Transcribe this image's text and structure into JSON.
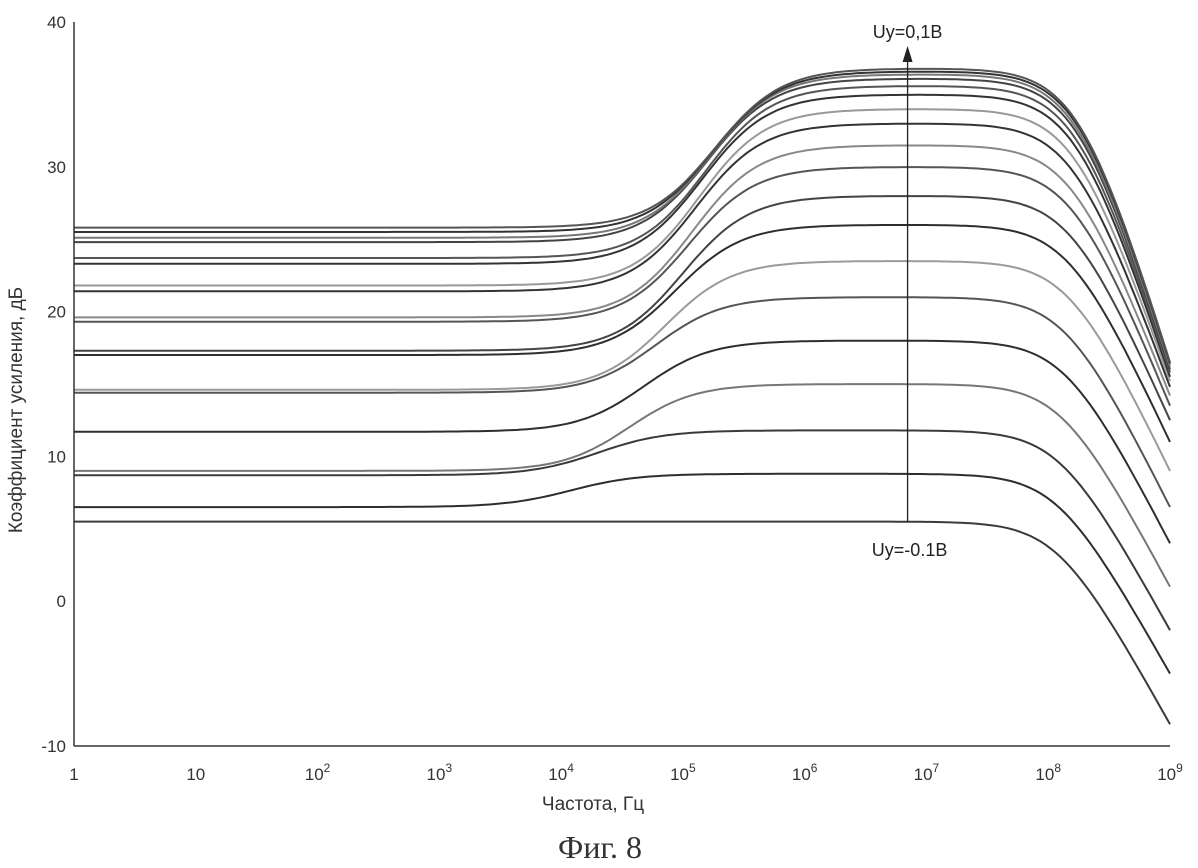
{
  "chart_data": {
    "type": "line",
    "xlabel": "Частота, Гц",
    "ylabel": "Коэффициент усиления, дБ",
    "caption": "Фиг. 8",
    "x_scale": "log",
    "xlim": [
      1,
      1000000000
    ],
    "ylim": [
      -10,
      40
    ],
    "grid": false,
    "x_ticks": [
      {
        "base": "1",
        "exp": ""
      },
      {
        "base": "10",
        "exp": ""
      },
      {
        "base": "10",
        "exp": "2"
      },
      {
        "base": "10",
        "exp": "3"
      },
      {
        "base": "10",
        "exp": "4"
      },
      {
        "base": "10",
        "exp": "5"
      },
      {
        "base": "10",
        "exp": "6"
      },
      {
        "base": "10",
        "exp": "7"
      },
      {
        "base": "10",
        "exp": "8"
      },
      {
        "base": "10",
        "exp": "9"
      }
    ],
    "y_ticks": [
      "40",
      "30",
      "20",
      "10",
      "0",
      "-10"
    ],
    "annotations": {
      "top": "Uy=0,1B",
      "bottom": "Uy=-0.1B",
      "arrow_x": 7000000
    },
    "series_model": "gain(f) = low + (mid - low) * T(f/fc) - rolloff above f_hi",
    "series": [
      {
        "low": 5.5,
        "mid": 5.5,
        "fc": 1000,
        "f_hi": 120000000,
        "end": -8.5,
        "tone": "#3a3a3a"
      },
      {
        "low": 6.5,
        "mid": 8.8,
        "fc": 3000,
        "f_hi": 120000000,
        "end": -5.0,
        "tone": "#2e2e2e"
      },
      {
        "low": 8.7,
        "mid": 11.8,
        "fc": 5000,
        "f_hi": 125000000,
        "end": -2.0,
        "tone": "#3a3a3a"
      },
      {
        "low": 9.0,
        "mid": 15.0,
        "fc": 9000,
        "f_hi": 130000000,
        "end": 1.0,
        "tone": "#777777"
      },
      {
        "low": 11.7,
        "mid": 18.0,
        "fc": 12000,
        "f_hi": 140000000,
        "end": 4.0,
        "tone": "#2e2e2e"
      },
      {
        "low": 14.4,
        "mid": 21.0,
        "fc": 15000,
        "f_hi": 140000000,
        "end": 6.5,
        "tone": "#555555"
      },
      {
        "low": 14.6,
        "mid": 23.5,
        "fc": 18000,
        "f_hi": 150000000,
        "end": 9.0,
        "tone": "#9a9a9a"
      },
      {
        "low": 17.0,
        "mid": 26.0,
        "fc": 22000,
        "f_hi": 150000000,
        "end": 11.0,
        "tone": "#2e2e2e"
      },
      {
        "low": 17.3,
        "mid": 28.0,
        "fc": 25000,
        "f_hi": 155000000,
        "end": 12.5,
        "tone": "#444444"
      },
      {
        "low": 19.3,
        "mid": 30.0,
        "fc": 28000,
        "f_hi": 160000000,
        "end": 13.5,
        "tone": "#555555"
      },
      {
        "low": 19.6,
        "mid": 31.5,
        "fc": 30000,
        "f_hi": 160000000,
        "end": 14.2,
        "tone": "#888888"
      },
      {
        "low": 21.4,
        "mid": 33.0,
        "fc": 32000,
        "f_hi": 165000000,
        "end": 14.8,
        "tone": "#333333"
      },
      {
        "low": 21.8,
        "mid": 34.0,
        "fc": 34000,
        "f_hi": 170000000,
        "end": 15.2,
        "tone": "#999999"
      },
      {
        "low": 23.3,
        "mid": 35.0,
        "fc": 36000,
        "f_hi": 175000000,
        "end": 15.5,
        "tone": "#333333"
      },
      {
        "low": 23.7,
        "mid": 35.6,
        "fc": 38000,
        "f_hi": 175000000,
        "end": 15.8,
        "tone": "#555555"
      },
      {
        "low": 24.8,
        "mid": 36.1,
        "fc": 40000,
        "f_hi": 180000000,
        "end": 16.0,
        "tone": "#444444"
      },
      {
        "low": 25.1,
        "mid": 36.4,
        "fc": 42000,
        "f_hi": 180000000,
        "end": 16.2,
        "tone": "#777777"
      },
      {
        "low": 25.5,
        "mid": 36.6,
        "fc": 44000,
        "f_hi": 185000000,
        "end": 16.4,
        "tone": "#333333"
      },
      {
        "low": 25.8,
        "mid": 36.8,
        "fc": 46000,
        "f_hi": 185000000,
        "end": 16.5,
        "tone": "#555555"
      }
    ]
  }
}
